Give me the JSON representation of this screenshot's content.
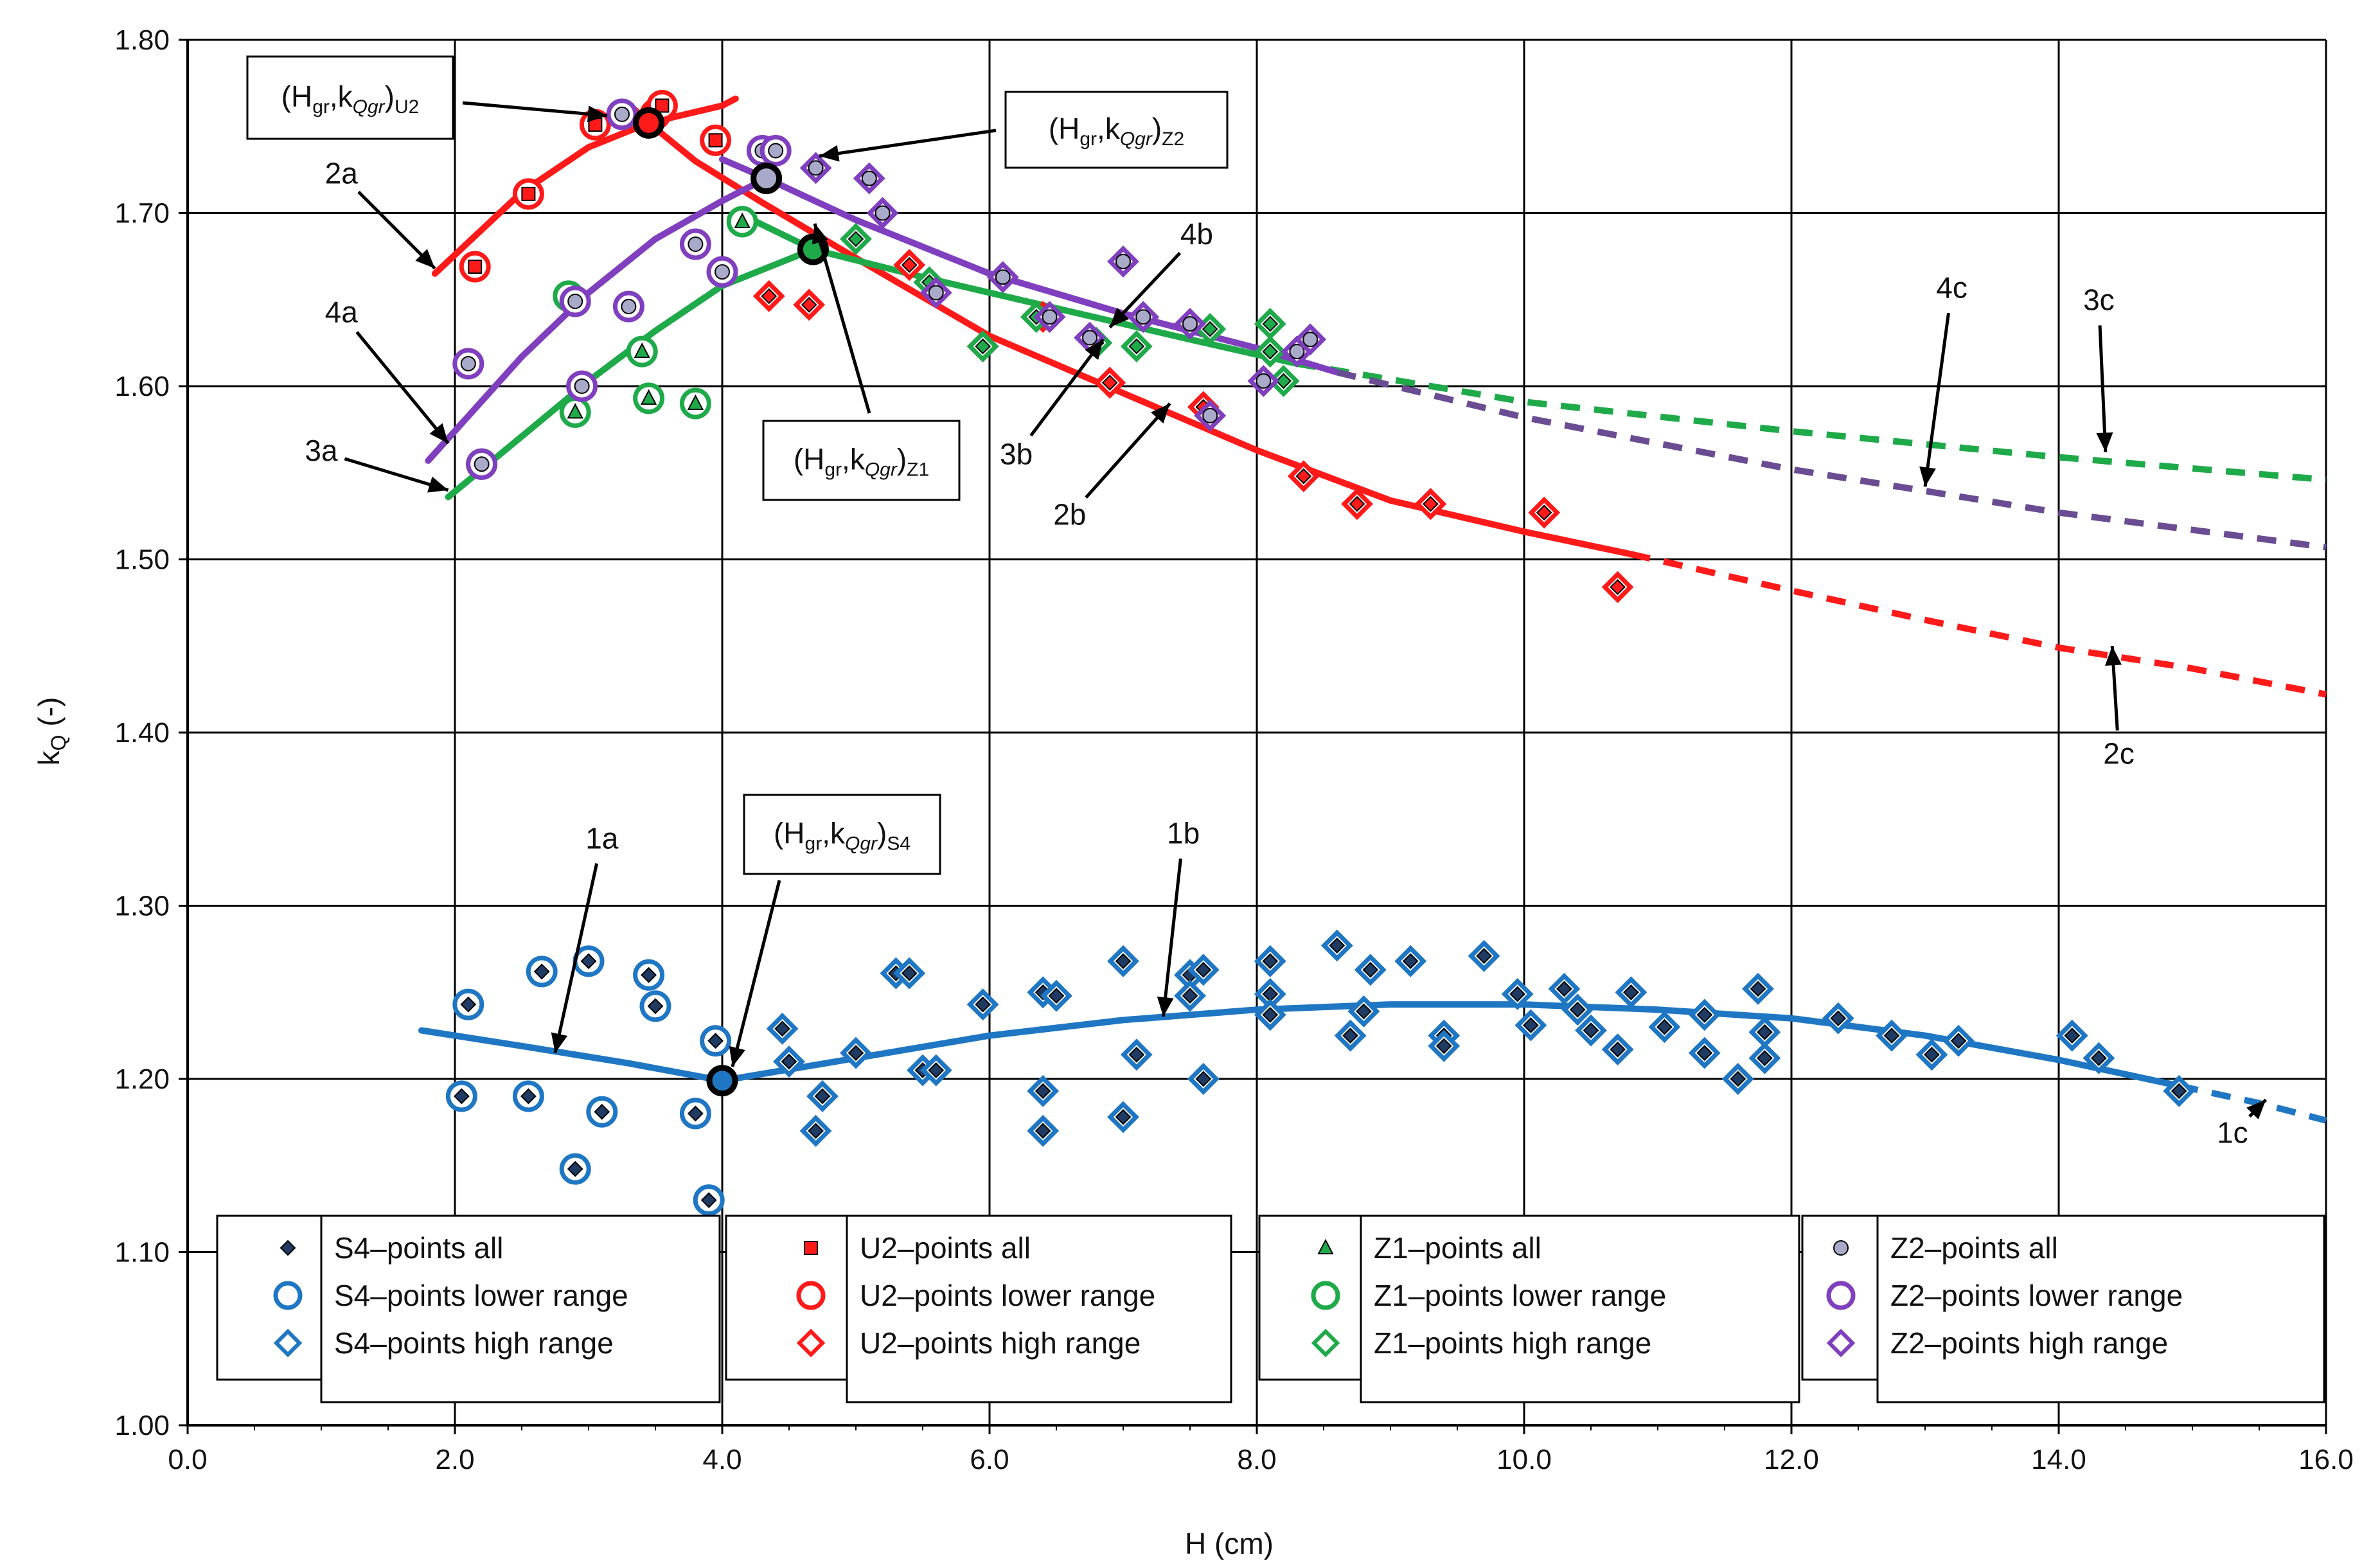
{
  "chart_data": {
    "type": "scatter",
    "xlabel": "H (cm)",
    "ylabel": "k",
    "ylabel_sub": "Q",
    "ylabel_suffix": " (-)",
    "xlim": [
      0,
      16
    ],
    "ylim": [
      1.0,
      1.8
    ],
    "grid": true,
    "x_ticks": [
      "0.0",
      "2.0",
      "4.0",
      "6.0",
      "8.0",
      "10.0",
      "12.0",
      "14.0",
      "16.0"
    ],
    "y_ticks": [
      "1.00",
      "1.10",
      "1.20",
      "1.30",
      "1.40",
      "1.50",
      "1.60",
      "1.70",
      "1.80"
    ],
    "colors": {
      "S4": "#1f77c4",
      "U2": "#ff1a1a",
      "Z1": "#1faa4a",
      "Z2": "#7f3fbf",
      "Z2_fill": "#a9a9c9",
      "dash4c": "#6a4c93"
    },
    "legend": [
      {
        "group": "S4",
        "entries": [
          "S4–points all",
          "S4–points lower range",
          "S4–points high range"
        ]
      },
      {
        "group": "U2",
        "entries": [
          "U2–points all",
          "U2–points lower range",
          "U2–points high range"
        ]
      },
      {
        "group": "Z1",
        "entries": [
          "Z1–points all",
          "Z1–points lower range",
          "Z1–points high range"
        ]
      },
      {
        "group": "Z2",
        "entries": [
          "Z2–points all",
          "Z2–points lower range",
          "Z2–points high range"
        ]
      }
    ],
    "series": [
      {
        "name": "S4–points lower range",
        "group": "S4",
        "marker": "circle-diamond",
        "points": [
          [
            2.05,
            1.19
          ],
          [
            2.1,
            1.243
          ],
          [
            2.55,
            1.19
          ],
          [
            2.65,
            1.262
          ],
          [
            2.9,
            1.148
          ],
          [
            3.0,
            1.268
          ],
          [
            3.1,
            1.181
          ],
          [
            3.45,
            1.26
          ],
          [
            3.5,
            1.242
          ],
          [
            3.8,
            1.18
          ],
          [
            3.9,
            1.13
          ],
          [
            3.95,
            1.222
          ]
        ]
      },
      {
        "name": "S4–points high range",
        "group": "S4",
        "marker": "diamond-diamond",
        "points": [
          [
            4.45,
            1.229
          ],
          [
            4.5,
            1.21
          ],
          [
            4.7,
            1.17
          ],
          [
            4.75,
            1.19
          ],
          [
            5.0,
            1.215
          ],
          [
            5.3,
            1.261
          ],
          [
            5.4,
            1.261
          ],
          [
            5.5,
            1.205
          ],
          [
            5.6,
            1.205
          ],
          [
            5.95,
            1.243
          ],
          [
            6.4,
            1.25
          ],
          [
            6.4,
            1.193
          ],
          [
            6.4,
            1.17
          ],
          [
            6.5,
            1.248
          ],
          [
            7.0,
            1.268
          ],
          [
            7.0,
            1.178
          ],
          [
            7.1,
            1.214
          ],
          [
            7.5,
            1.26
          ],
          [
            7.5,
            1.248
          ],
          [
            7.6,
            1.263
          ],
          [
            7.6,
            1.2
          ],
          [
            8.1,
            1.268
          ],
          [
            8.1,
            1.249
          ],
          [
            8.1,
            1.237
          ],
          [
            8.6,
            1.277
          ],
          [
            8.7,
            1.225
          ],
          [
            8.8,
            1.239
          ],
          [
            8.85,
            1.263
          ],
          [
            9.15,
            1.268
          ],
          [
            9.4,
            1.225
          ],
          [
            9.4,
            1.219
          ],
          [
            9.7,
            1.271
          ],
          [
            9.95,
            1.249
          ],
          [
            10.05,
            1.231
          ],
          [
            10.3,
            1.252
          ],
          [
            10.4,
            1.24
          ],
          [
            10.5,
            1.228
          ],
          [
            10.7,
            1.217
          ],
          [
            10.8,
            1.25
          ],
          [
            11.05,
            1.23
          ],
          [
            11.35,
            1.237
          ],
          [
            11.35,
            1.215
          ],
          [
            11.6,
            1.2
          ],
          [
            11.75,
            1.252
          ],
          [
            11.8,
            1.227
          ],
          [
            11.8,
            1.212
          ],
          [
            12.35,
            1.235
          ],
          [
            12.75,
            1.225
          ],
          [
            13.05,
            1.214
          ],
          [
            13.25,
            1.222
          ],
          [
            14.1,
            1.225
          ],
          [
            14.3,
            1.212
          ],
          [
            14.9,
            1.193
          ]
        ]
      },
      {
        "name": "U2–points lower range",
        "group": "U2",
        "marker": "circle-square",
        "points": [
          [
            2.15,
            1.669
          ],
          [
            2.55,
            1.711
          ],
          [
            3.05,
            1.751
          ],
          [
            3.5,
            1.757
          ],
          [
            3.55,
            1.762
          ],
          [
            3.95,
            1.742
          ]
        ]
      },
      {
        "name": "U2–points high range",
        "group": "U2",
        "marker": "diamond-diamond",
        "points": [
          [
            4.35,
            1.652
          ],
          [
            4.65,
            1.647
          ],
          [
            5.4,
            1.67
          ],
          [
            5.95,
            1.623
          ],
          [
            6.4,
            1.64
          ],
          [
            6.9,
            1.602
          ],
          [
            7.6,
            1.588
          ],
          [
            8.35,
            1.548
          ],
          [
            8.75,
            1.532
          ],
          [
            9.3,
            1.532
          ],
          [
            10.15,
            1.527
          ],
          [
            10.7,
            1.484
          ]
        ]
      },
      {
        "name": "Z1–points lower range",
        "group": "Z1",
        "marker": "circle-triangle",
        "points": [
          [
            2.2,
            1.555
          ],
          [
            2.85,
            1.652
          ],
          [
            2.9,
            1.585
          ],
          [
            3.4,
            1.62
          ],
          [
            3.45,
            1.593
          ],
          [
            3.8,
            1.59
          ],
          [
            4.15,
            1.695
          ]
        ]
      },
      {
        "name": "Z1–points high range",
        "group": "Z1",
        "marker": "diamond-diamond",
        "points": [
          [
            5.0,
            1.685
          ],
          [
            5.55,
            1.66
          ],
          [
            5.95,
            1.623
          ],
          [
            6.35,
            1.64
          ],
          [
            6.8,
            1.625
          ],
          [
            7.1,
            1.623
          ],
          [
            7.65,
            1.633
          ],
          [
            8.1,
            1.636
          ],
          [
            8.1,
            1.62
          ],
          [
            8.2,
            1.603
          ]
        ]
      },
      {
        "name": "Z2–points lower range",
        "group": "Z2",
        "marker": "circle-circle",
        "points": [
          [
            2.1,
            1.613
          ],
          [
            2.2,
            1.555
          ],
          [
            2.9,
            1.649
          ],
          [
            2.95,
            1.6
          ],
          [
            3.25,
            1.757
          ],
          [
            3.3,
            1.646
          ],
          [
            3.8,
            1.682
          ],
          [
            4.0,
            1.666
          ],
          [
            4.3,
            1.736
          ],
          [
            4.4,
            1.736
          ]
        ]
      },
      {
        "name": "Z2–points high range",
        "group": "Z2",
        "marker": "diamond-circle",
        "points": [
          [
            4.7,
            1.726
          ],
          [
            5.1,
            1.72
          ],
          [
            5.2,
            1.7
          ],
          [
            5.6,
            1.654
          ],
          [
            6.1,
            1.663
          ],
          [
            6.45,
            1.64
          ],
          [
            6.75,
            1.628
          ],
          [
            7.0,
            1.672
          ],
          [
            7.15,
            1.64
          ],
          [
            7.5,
            1.636
          ],
          [
            7.65,
            1.583
          ],
          [
            8.05,
            1.603
          ],
          [
            8.3,
            1.62
          ],
          [
            8.4,
            1.627
          ]
        ]
      }
    ],
    "fit_curves": [
      {
        "label": "1a",
        "group": "S4",
        "points": [
          [
            1.75,
            1.228
          ],
          [
            2.5,
            1.219
          ],
          [
            3.3,
            1.209
          ],
          [
            4.0,
            1.199
          ]
        ]
      },
      {
        "label": "1b",
        "group": "S4",
        "points": [
          [
            4.0,
            1.199
          ],
          [
            5.0,
            1.212
          ],
          [
            6.0,
            1.225
          ],
          [
            7.0,
            1.234
          ],
          [
            8.0,
            1.24
          ],
          [
            9.0,
            1.243
          ],
          [
            10.0,
            1.243
          ],
          [
            11.0,
            1.24
          ],
          [
            12.0,
            1.235
          ],
          [
            13.0,
            1.225
          ],
          [
            14.0,
            1.211
          ],
          [
            14.9,
            1.196
          ]
        ]
      },
      {
        "label": "1c",
        "group": "S4",
        "dashed": true,
        "points": [
          [
            14.9,
            1.196
          ],
          [
            15.5,
            1.186
          ],
          [
            16.0,
            1.176
          ]
        ]
      },
      {
        "label": "2a",
        "group": "U2",
        "points": [
          [
            1.85,
            1.665
          ],
          [
            2.5,
            1.712
          ],
          [
            3.0,
            1.738
          ],
          [
            3.45,
            1.752
          ],
          [
            4.0,
            1.762
          ],
          [
            4.1,
            1.766
          ]
        ]
      },
      {
        "label": "2a-b",
        "group": "U2",
        "points": [
          [
            3.3,
            1.763
          ],
          [
            3.45,
            1.752
          ],
          [
            3.8,
            1.73
          ],
          [
            4.3,
            1.706
          ],
          [
            5.0,
            1.674
          ],
          [
            6.0,
            1.629
          ],
          [
            7.0,
            1.596
          ],
          [
            8.0,
            1.563
          ],
          [
            9.0,
            1.534
          ],
          [
            10.0,
            1.516
          ],
          [
            10.8,
            1.503
          ]
        ]
      },
      {
        "label": "2c",
        "group": "U2",
        "dashed": true,
        "points": [
          [
            10.8,
            1.503
          ],
          [
            12.0,
            1.482
          ],
          [
            13.0,
            1.465
          ],
          [
            14.0,
            1.449
          ],
          [
            15.0,
            1.437
          ],
          [
            16.0,
            1.422
          ]
        ]
      },
      {
        "label": "3a",
        "group": "Z1",
        "points": [
          [
            1.95,
            1.536
          ],
          [
            2.5,
            1.571
          ],
          [
            3.0,
            1.603
          ],
          [
            3.5,
            1.632
          ],
          [
            4.0,
            1.658
          ],
          [
            4.68,
            1.679
          ]
        ]
      },
      {
        "label": "3b",
        "group": "Z1",
        "points": [
          [
            4.2,
            1.697
          ],
          [
            4.68,
            1.679
          ],
          [
            5.5,
            1.663
          ],
          [
            6.5,
            1.645
          ],
          [
            7.5,
            1.627
          ],
          [
            8.3,
            1.613
          ]
        ]
      },
      {
        "label": "3c",
        "group": "Z1",
        "dashed": true,
        "points": [
          [
            8.3,
            1.613
          ],
          [
            10.0,
            1.591
          ],
          [
            12.0,
            1.574
          ],
          [
            14.0,
            1.559
          ],
          [
            16.0,
            1.546
          ]
        ]
      },
      {
        "label": "4a",
        "group": "Z2",
        "points": [
          [
            1.8,
            1.557
          ],
          [
            2.5,
            1.617
          ],
          [
            3.0,
            1.654
          ],
          [
            3.5,
            1.685
          ],
          [
            4.0,
            1.707
          ],
          [
            4.33,
            1.72
          ]
        ]
      },
      {
        "label": "4b",
        "group": "Z2",
        "points": [
          [
            4.0,
            1.731
          ],
          [
            4.33,
            1.72
          ],
          [
            5.0,
            1.696
          ],
          [
            6.0,
            1.665
          ],
          [
            7.0,
            1.642
          ],
          [
            8.0,
            1.622
          ],
          [
            8.6,
            1.608
          ]
        ]
      },
      {
        "label": "4c",
        "group": "Z2",
        "dashed": true,
        "points": [
          [
            8.6,
            1.608
          ],
          [
            10.0,
            1.582
          ],
          [
            12.0,
            1.552
          ],
          [
            14.0,
            1.527
          ],
          [
            16.0,
            1.507
          ]
        ]
      }
    ],
    "critical_points": [
      {
        "group": "U2",
        "x": 3.45,
        "y": 1.752
      },
      {
        "group": "Z2",
        "x": 4.33,
        "y": 1.72
      },
      {
        "group": "Z1",
        "x": 4.68,
        "y": 1.679
      },
      {
        "group": "S4",
        "x": 4.0,
        "y": 1.199
      }
    ],
    "annotations": [
      {
        "text": "2a",
        "tx": 1.15,
        "ty": 1.717,
        "ax": 1.85,
        "ay": 1.668
      },
      {
        "text": "4a",
        "tx": 1.15,
        "ty": 1.637,
        "ax": 1.95,
        "ay": 1.567
      },
      {
        "text": "3a",
        "tx": 1.0,
        "ty": 1.557,
        "ax": 1.95,
        "ay": 1.54
      },
      {
        "text": "1a",
        "tx": 3.1,
        "ty": 1.333,
        "ax": 2.75,
        "ay": 1.215
      },
      {
        "text": "1b",
        "tx": 7.45,
        "ty": 1.336,
        "ax": 7.3,
        "ay": 1.236
      },
      {
        "text": "1c",
        "tx": 15.3,
        "ty": 1.163,
        "ax": 15.55,
        "ay": 1.188
      },
      {
        "text": "4b",
        "tx": 7.55,
        "ty": 1.682,
        "ax": 6.9,
        "ay": 1.634
      },
      {
        "text": "3b",
        "tx": 6.2,
        "ty": 1.555,
        "ax": 6.85,
        "ay": 1.627
      },
      {
        "text": "2b",
        "tx": 6.6,
        "ty": 1.52,
        "ax": 7.35,
        "ay": 1.59
      },
      {
        "text": "4c",
        "tx": 13.2,
        "ty": 1.651,
        "ax": 13.0,
        "ay": 1.542
      },
      {
        "text": "3c",
        "tx": 14.3,
        "ty": 1.644,
        "ax": 14.35,
        "ay": 1.562
      },
      {
        "text": "2c",
        "tx": 14.45,
        "ty": 1.382,
        "ax": 14.4,
        "ay": 1.45
      }
    ],
    "callouts": [
      {
        "group": "U2",
        "text": "(H",
        "sub1": "gr",
        "mid": ",k",
        "sub2": "Qgr",
        "close": ")",
        "sub3": "U2"
      },
      {
        "group": "Z2",
        "text": "(H",
        "sub1": "gr",
        "mid": ",k",
        "sub2": "Qgr",
        "close": ")",
        "sub3": "Z2"
      },
      {
        "group": "Z1",
        "text": "(H",
        "sub1": "gr",
        "mid": ",k",
        "sub2": "Qgr",
        "close": ")",
        "sub3": "Z1"
      },
      {
        "group": "S4",
        "text": "(H",
        "sub1": "gr",
        "mid": ",k",
        "sub2": "Qgr",
        "close": ")",
        "sub3": "S4"
      }
    ]
  }
}
